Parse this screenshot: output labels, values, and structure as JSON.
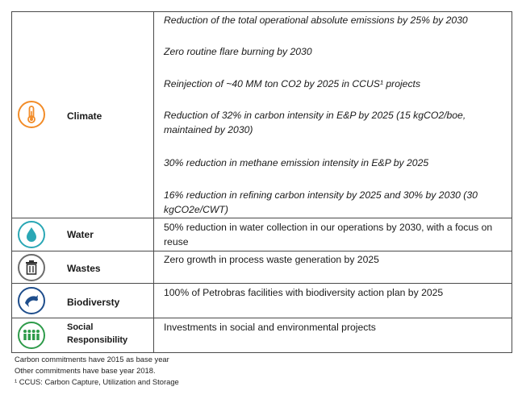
{
  "rows": [
    {
      "category": "Climate",
      "icon": "thermometer-icon",
      "icon_color": "#f28c28",
      "items": [
        "Reduction of the total operational absolute emissions by 25% by 2030",
        "Zero routine flare burning by 2030",
        "Reinjection of ~40 MM ton CO2 by 2025 in CCUS¹ projects",
        "Reduction of 32% in carbon intensity in E&P by 2025 (15 kgCO2/boe, maintained by 2030)",
        "30% reduction in methane emission intensity in E&P by 2025",
        "16% reduction in refining carbon intensity by 2025 and 30% by 2030 (30 kgCO2e/CWT)"
      ]
    },
    {
      "category": "Water",
      "icon": "water-drop-icon",
      "icon_color": "#2aa7b5",
      "items": [
        "50% reduction in water collection in our operations by 2030, with a focus on reuse"
      ]
    },
    {
      "category": "Wastes",
      "icon": "trash-can-icon",
      "icon_color": "#6d6d6d",
      "items": [
        "Zero growth in process waste generation by 2025"
      ]
    },
    {
      "category": "Biodiversty",
      "icon": "dolphin-icon",
      "icon_color": "#1f4e8c",
      "items": [
        "100% of Petrobras facilities with biodiversity action plan by 2025"
      ]
    },
    {
      "category_line1": "Social",
      "category_line2": "Responsibility",
      "icon": "people-icon",
      "icon_color": "#2e9b4a",
      "items": [
        "Investments in social and environmental projects"
      ]
    }
  ],
  "notes": [
    "Carbon commitments have 2015 as base year",
    "Other commitments have base year 2018.",
    "¹ CCUS: Carbon Capture, Utilization and Storage"
  ]
}
